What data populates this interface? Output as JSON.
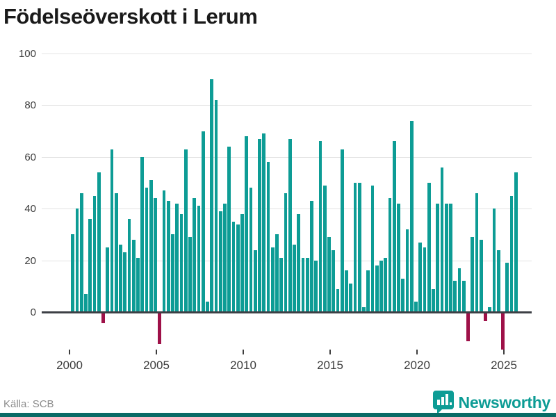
{
  "title": "Födelseöverskott i Lerum",
  "source": "Källa: SCB",
  "branding": {
    "name": "Newsworthy"
  },
  "colors": {
    "positive": "#0D9C95",
    "negative": "#9E1148",
    "grid": "#E3E3E3",
    "axis_line": "#3D4045",
    "text": "#3D3D3D",
    "muted": "#8C8C8C",
    "brand": "#0D9C95",
    "footer_strip": "#0A6B66",
    "title_color": "#1A1A1A"
  },
  "chart_data": {
    "type": "bar",
    "title": "Födelseöverskott i Lerum",
    "xlabel": "",
    "ylabel": "",
    "frequency": "quarterly",
    "grid": true,
    "legend": false,
    "ylim": [
      -15,
      100
    ],
    "yticks": [
      0,
      20,
      40,
      60,
      80,
      100
    ],
    "x_tick_years": [
      2000,
      2005,
      2010,
      2015,
      2020,
      2025
    ],
    "x_tick_labels": [
      "2000",
      "2005",
      "2010",
      "2015",
      "2020",
      "2025"
    ],
    "years": [
      {
        "year": 2000,
        "values": [
          30,
          40,
          46,
          7
        ]
      },
      {
        "year": 2001,
        "values": [
          36,
          45,
          54,
          -4
        ]
      },
      {
        "year": 2002,
        "values": [
          25,
          63,
          46,
          26
        ]
      },
      {
        "year": 2003,
        "values": [
          23,
          36,
          28,
          21
        ]
      },
      {
        "year": 2004,
        "values": [
          60,
          48,
          51,
          44
        ]
      },
      {
        "year": 2005,
        "values": [
          -12,
          47,
          43,
          30
        ]
      },
      {
        "year": 2006,
        "values": [
          42,
          38,
          63,
          29
        ]
      },
      {
        "year": 2007,
        "values": [
          44,
          41,
          70,
          4
        ]
      },
      {
        "year": 2008,
        "values": [
          90,
          82,
          39,
          42
        ]
      },
      {
        "year": 2009,
        "values": [
          64,
          35,
          34,
          38
        ]
      },
      {
        "year": 2010,
        "values": [
          68,
          48,
          24,
          67
        ]
      },
      {
        "year": 2011,
        "values": [
          69,
          58,
          25,
          30
        ]
      },
      {
        "year": 2012,
        "values": [
          21,
          46,
          67,
          26
        ]
      },
      {
        "year": 2013,
        "values": [
          38,
          21,
          21,
          43
        ]
      },
      {
        "year": 2014,
        "values": [
          20,
          66,
          49,
          29
        ]
      },
      {
        "year": 2015,
        "values": [
          24,
          9,
          63,
          16
        ]
      },
      {
        "year": 2016,
        "values": [
          11,
          50,
          50,
          2
        ]
      },
      {
        "year": 2017,
        "values": [
          16,
          49,
          18,
          20
        ]
      },
      {
        "year": 2018,
        "values": [
          21,
          44,
          66,
          42
        ]
      },
      {
        "year": 2019,
        "values": [
          13,
          32,
          74,
          4
        ]
      },
      {
        "year": 2020,
        "values": [
          27,
          25,
          50,
          9
        ]
      },
      {
        "year": 2021,
        "values": [
          42,
          56,
          42,
          42
        ]
      },
      {
        "year": 2022,
        "values": [
          12,
          17,
          12,
          -11
        ]
      },
      {
        "year": 2023,
        "values": [
          29,
          46,
          28,
          -3
        ]
      },
      {
        "year": 2024,
        "values": [
          2,
          40,
          24,
          -14
        ]
      },
      {
        "year": 2025,
        "values": [
          19,
          45,
          54
        ]
      }
    ]
  }
}
